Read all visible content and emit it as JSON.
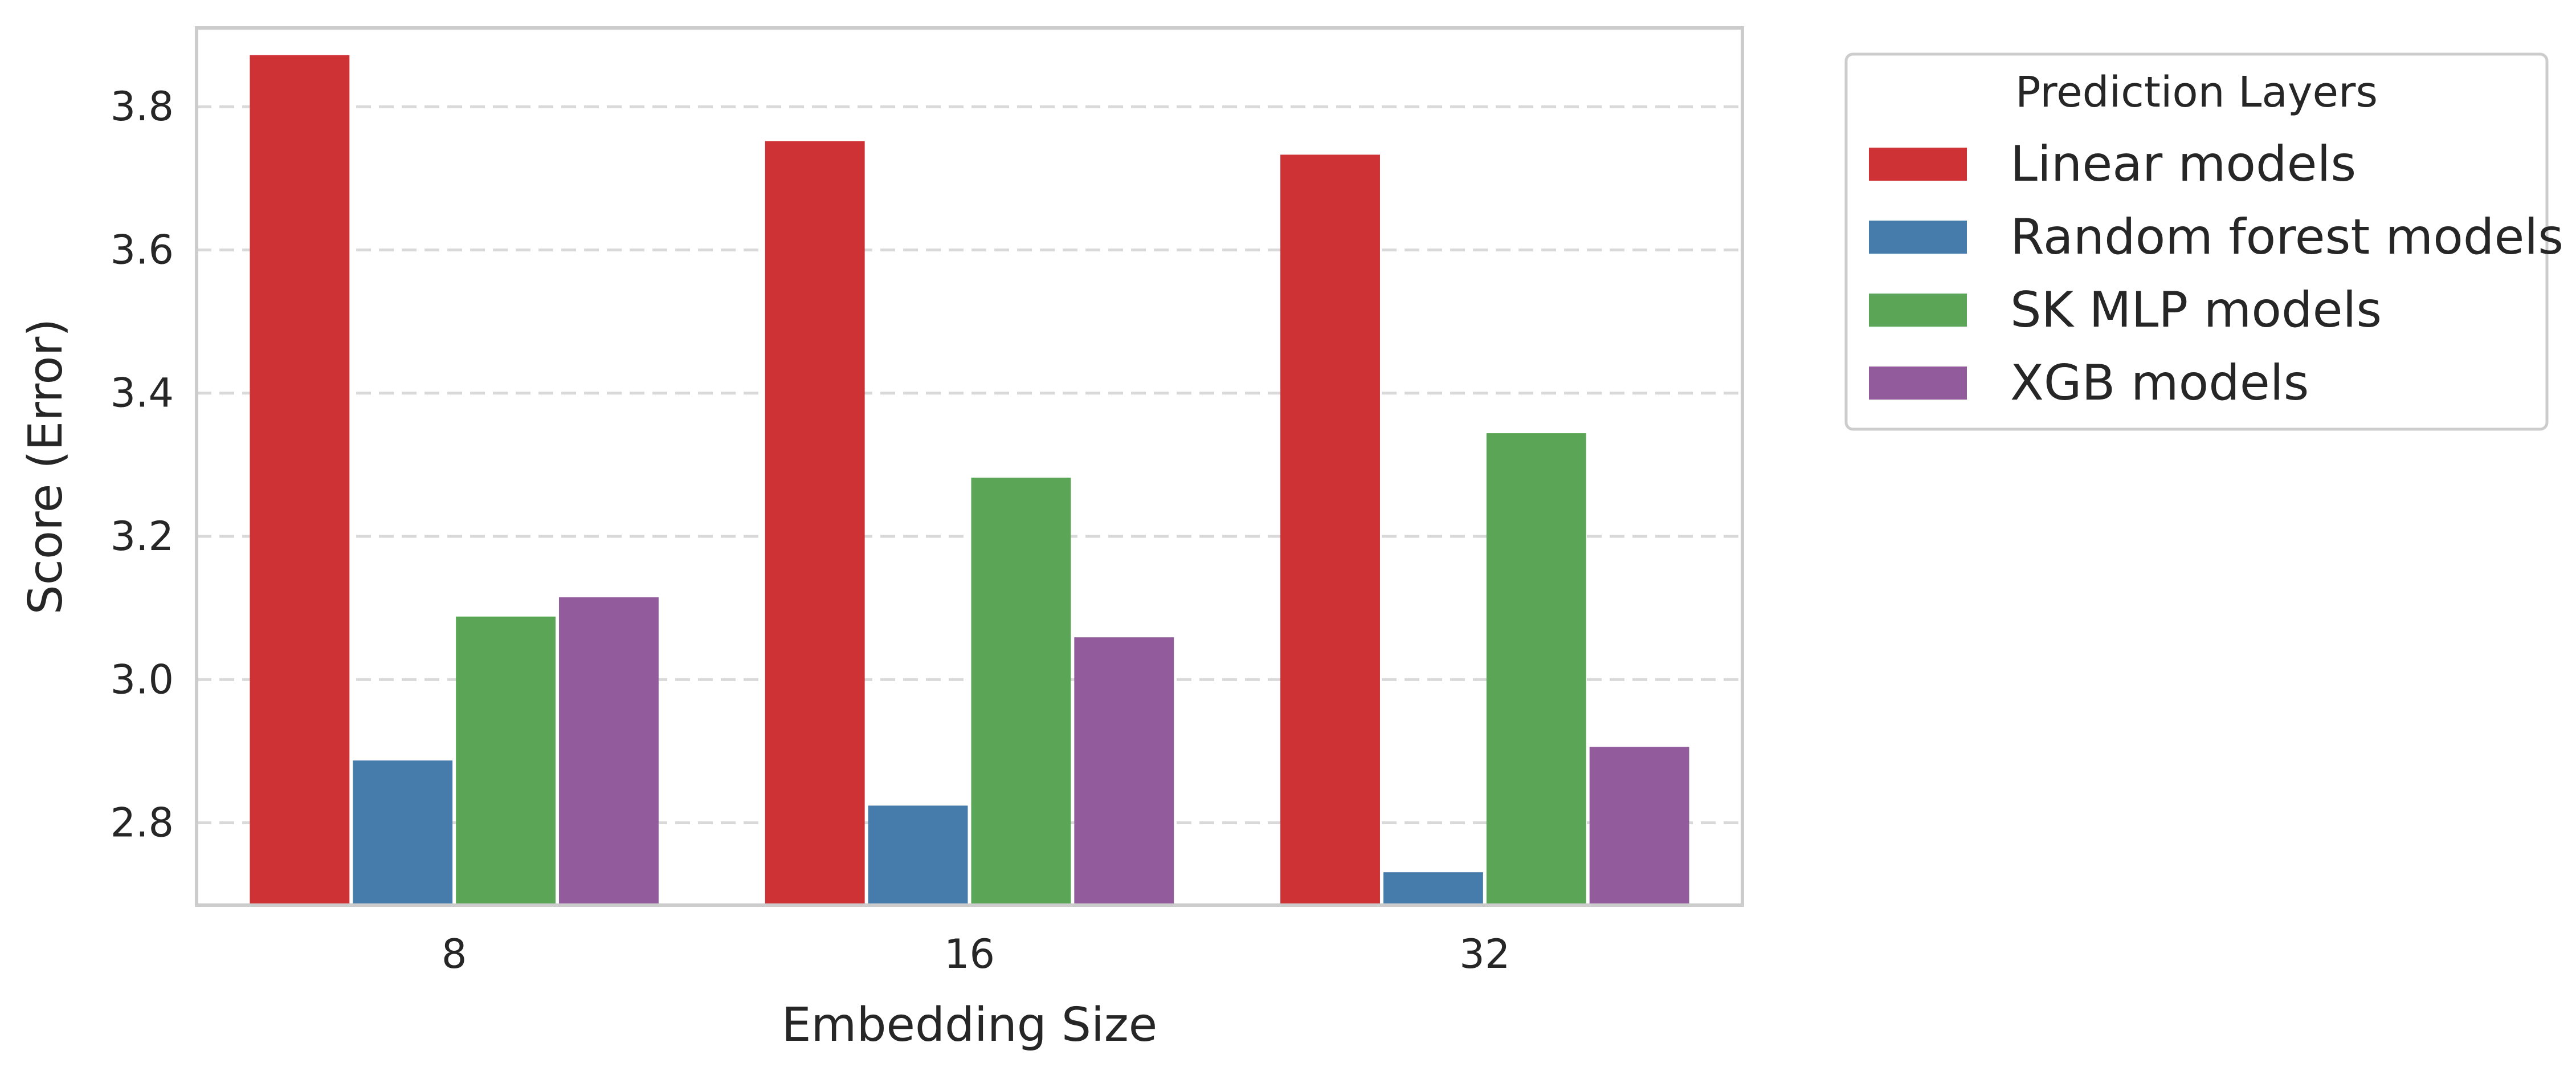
{
  "chart_data": {
    "type": "bar",
    "title": "",
    "xlabel": "Embedding Size",
    "ylabel": "Score (Error)",
    "categories": [
      "8",
      "16",
      "32"
    ],
    "ylim": [
      2.685,
      3.91
    ],
    "yticks": [
      2.8,
      3.0,
      3.2,
      3.4,
      3.6,
      3.8
    ],
    "ytick_labels": [
      "2.8",
      "3.0",
      "3.2",
      "3.4",
      "3.6",
      "3.8"
    ],
    "grid": "y-dashed",
    "legend": {
      "title": "Prediction Layers",
      "placement": "outside-top-right"
    },
    "series": [
      {
        "name": "Linear models",
        "color": "#cf3235",
        "values": [
          3.872,
          3.752,
          3.733
        ]
      },
      {
        "name": "Random forest models",
        "color": "#467cab",
        "values": [
          2.887,
          2.824,
          2.731
        ]
      },
      {
        "name": "SK MLP models",
        "color": "#5ba557",
        "values": [
          3.088,
          3.282,
          3.344
        ]
      },
      {
        "name": "XGB models",
        "color": "#925b9c",
        "values": [
          3.115,
          3.059,
          2.906
        ]
      }
    ]
  }
}
